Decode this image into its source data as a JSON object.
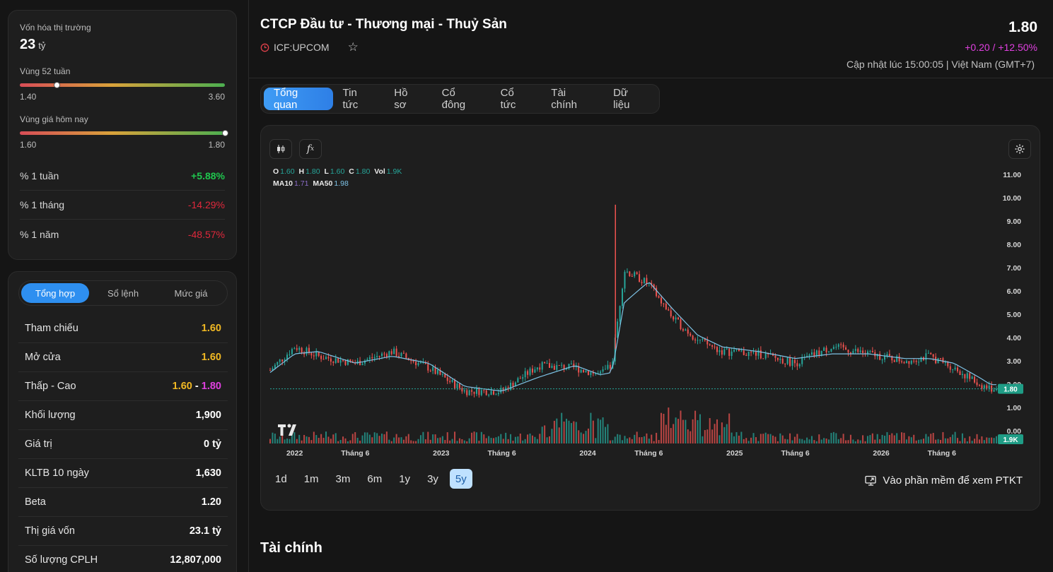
{
  "market_cap": {
    "label": "Vốn hóa thị trường",
    "value": "23",
    "unit": "tỷ"
  },
  "range_52w": {
    "label": "Vùng 52 tuần",
    "low": "1.40",
    "high": "3.60",
    "position": 0.18
  },
  "range_today": {
    "label": "Vùng giá hôm nay",
    "low": "1.60",
    "high": "1.80",
    "position": 1.0
  },
  "performance": [
    {
      "label": "% 1 tuần",
      "value": "+5.88%",
      "dir": "pos"
    },
    {
      "label": "% 1 tháng",
      "value": "-14.29%",
      "dir": "neg"
    },
    {
      "label": "% 1 năm",
      "value": "-48.57%",
      "dir": "neg"
    }
  ],
  "stats_tabs": [
    "Tổng hợp",
    "Sổ lệnh",
    "Mức giá"
  ],
  "stats": {
    "ref_label": "Tham chiếu",
    "ref_value": "1.60",
    "open_label": "Mở cửa",
    "open_value": "1.60",
    "lowhigh_label": "Thấp - Cao",
    "low_value": "1.60",
    "sep": "-",
    "high_value": "1.80",
    "volume_label": "Khối lượng",
    "volume_value": "1,900",
    "value_label": "Giá trị",
    "value_value": "0 tỷ",
    "avg10_label": "KLTB 10 ngày",
    "avg10_value": "1,630",
    "beta_label": "Beta",
    "beta_value": "1.20",
    "mcap_label": "Thị giá vốn",
    "mcap_value": "23.1 tỷ",
    "shares_label": "Số lượng CPLH",
    "shares_value": "12,807,000"
  },
  "header": {
    "company": "CTCP Đầu tư - Thương mại - Thuỷ Sản",
    "ticker": "ICF:UPCOM",
    "price": "1.80",
    "change": "+0.20 / +12.50%",
    "updated": "Cập nhật lúc 15:00:05 | Việt Nam (GMT+7)"
  },
  "tabs": [
    "Tổng quan",
    "Tin tức",
    "Hồ sơ",
    "Cổ đông",
    "Cổ tức",
    "Tài chính",
    "Dữ liệu"
  ],
  "chart_legend": {
    "o_label": "O",
    "o": "1.60",
    "h_label": "H",
    "h": "1.80",
    "l_label": "L",
    "l": "1.60",
    "c_label": "C",
    "c": "1.80",
    "vol_label": "Vol",
    "vol": "1.9K",
    "ma10_label": "MA10",
    "ma10": "1.71",
    "ma50_label": "MA50",
    "ma50": "1.98"
  },
  "range_buttons": [
    "1d",
    "1m",
    "3m",
    "6m",
    "1y",
    "3y",
    "5y"
  ],
  "ptkt_label": "Vào phần mềm để xem PTKT",
  "section_title": "Tài chính",
  "colors": {
    "up": "#26a69a",
    "down": "#ef5350",
    "accent": "#2e8ff0",
    "magenta": "#e040e0",
    "gold": "#f0b823"
  },
  "chart_data": {
    "type": "line",
    "x": [
      "2021-11",
      "2022-01",
      "2022-03",
      "2022-06",
      "2022-09",
      "2022-12",
      "2023-03",
      "2023-06",
      "2023-09",
      "2023-12",
      "2024-02",
      "2024-03",
      "2024-04",
      "2024-06",
      "2024-08",
      "2024-10",
      "2024-12",
      "2025-03",
      "2025-06",
      "2025-09",
      "2025-12",
      "2026-03",
      "2026-05",
      "2026-07",
      "2026-09",
      "2026-10"
    ],
    "series": [
      {
        "values": [
          2.6,
          3.6,
          3.2,
          2.9,
          3.4,
          2.7,
          1.7,
          1.7,
          2.8,
          2.7,
          2.4,
          2.8,
          6.9,
          6.3,
          4.8,
          3.9,
          3.4,
          3.3,
          2.9,
          3.6,
          3.3,
          3.0,
          3.2,
          2.7,
          2.0,
          1.8
        ]
      },
      {
        "name": "MA50",
        "values": [
          2.5,
          3.3,
          3.4,
          2.9,
          3.2,
          2.9,
          1.9,
          1.7,
          2.3,
          2.8,
          2.4,
          2.5,
          5.5,
          6.4,
          5.2,
          4.1,
          3.6,
          3.4,
          3.1,
          3.3,
          3.3,
          3.1,
          3.1,
          2.9,
          2.3,
          1.98
        ]
      }
    ],
    "y_ticks": [
      "0.00",
      "1.00",
      "2.00",
      "3.00",
      "4.00",
      "5.00",
      "6.00",
      "7.00",
      "8.00",
      "9.00",
      "10.00",
      "11.00"
    ],
    "x_ticks": [
      "2022",
      "Tháng 6",
      "2023",
      "Tháng 6",
      "2024",
      "Tháng 6",
      "2025",
      "Tháng 6",
      "2026",
      "Tháng 6"
    ],
    "ylim": [
      0,
      11
    ],
    "last_price_label": "1.80",
    "last_volume_label": "1.9K"
  }
}
